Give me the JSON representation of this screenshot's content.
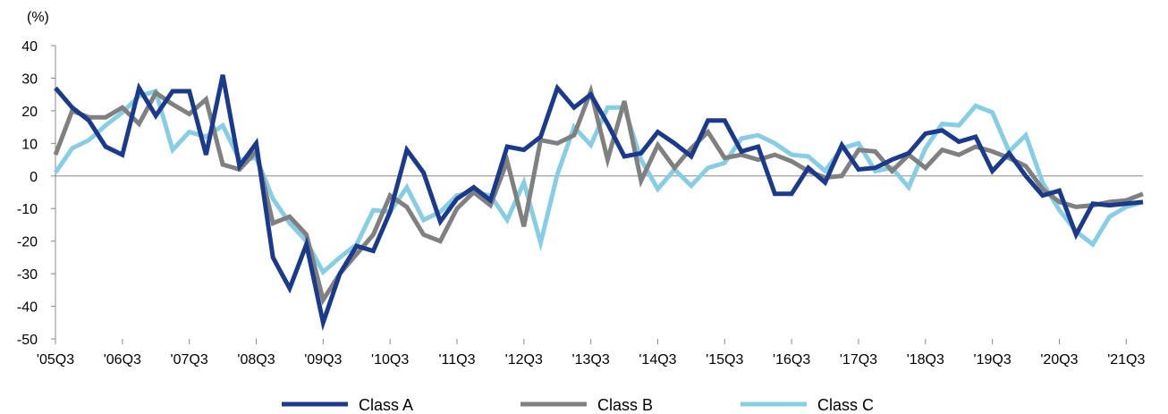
{
  "chart_data": {
    "type": "line",
    "title": "",
    "xlabel": "",
    "ylabel": "",
    "unit_label": "(%)",
    "ylim": [
      -50,
      40
    ],
    "y_ticks": [
      40,
      30,
      20,
      10,
      0,
      -10,
      -20,
      -30,
      -40,
      -50
    ],
    "x_tick_labels": [
      "'05Q3",
      "'06Q3",
      "'07Q3",
      "'08Q3",
      "'09Q3",
      "'10Q3",
      "'11Q3",
      "'12Q3",
      "'13Q3",
      "'14Q3",
      "'15Q3",
      "'16Q3",
      "'17Q3",
      "'18Q3",
      "'19Q3",
      "'20Q3",
      "'21Q3"
    ],
    "grid": false,
    "zero_line": true,
    "legend_position": "bottom",
    "series": [
      {
        "name": "Class A",
        "color": "#1B3A8C",
        "values": [
          27,
          21,
          17,
          9,
          6.5,
          27,
          18.5,
          26,
          26,
          6.5,
          31,
          3,
          10,
          -25,
          -34.5,
          -21,
          -45,
          -30,
          -21.5,
          -23,
          -11,
          8,
          1,
          -14,
          -7,
          -3.5,
          -7.5,
          9,
          8,
          12,
          27,
          21,
          25,
          16,
          6,
          7,
          13.5,
          10,
          6,
          17,
          17,
          7.5,
          9,
          -5.5,
          -5.5,
          2.5,
          -2,
          9.5,
          2,
          2.5,
          5,
          7,
          13,
          14,
          10.5,
          12,
          1.5,
          7,
          0,
          -6,
          -4.5,
          -18,
          -8.5,
          -9,
          -8.5,
          -8
        ]
      },
      {
        "name": "Class B",
        "color": "#808080",
        "values": [
          6.5,
          20,
          18,
          18,
          21,
          16,
          25.5,
          22,
          19,
          23.5,
          3.5,
          2,
          7.5,
          -14.5,
          -12.5,
          -18,
          -38,
          -30,
          -24,
          -18,
          -6,
          -9.5,
          -18,
          -20,
          -10,
          -5,
          -9,
          4.5,
          -15.5,
          11,
          10,
          12.5,
          26,
          5,
          23,
          -1.5,
          9.5,
          2.5,
          8.5,
          13.5,
          5.5,
          6.5,
          5,
          6.5,
          4.5,
          1.5,
          -0.5,
          0,
          8,
          7.5,
          1.5,
          6.5,
          2.5,
          8,
          6.5,
          9,
          7.5,
          5.5,
          3,
          -4,
          -8,
          -9.5,
          -9,
          -8,
          -7.5,
          -5.5
        ]
      },
      {
        "name": "Class C",
        "color": "#87CEE5",
        "values": [
          1,
          8.5,
          11,
          15.5,
          19.5,
          24.5,
          26,
          8,
          13.5,
          12,
          15.5,
          5,
          5.5,
          -7,
          -14.5,
          -20,
          -29.5,
          -25,
          -21,
          -10.5,
          -11,
          -3.5,
          -13.5,
          -11,
          -6,
          -5,
          -6,
          -13.5,
          -2,
          -20.5,
          0.5,
          15,
          9.5,
          21,
          21,
          5,
          -4,
          2,
          -3,
          2.5,
          4,
          11.5,
          12.5,
          10,
          6.5,
          6,
          1.5,
          8.5,
          10,
          1.5,
          2.5,
          -3.5,
          8.5,
          16,
          15.5,
          21.5,
          19.5,
          7.5,
          12.5,
          -2,
          -10.5,
          -17,
          -21,
          -12.5,
          -9.5,
          -8
        ]
      }
    ]
  }
}
